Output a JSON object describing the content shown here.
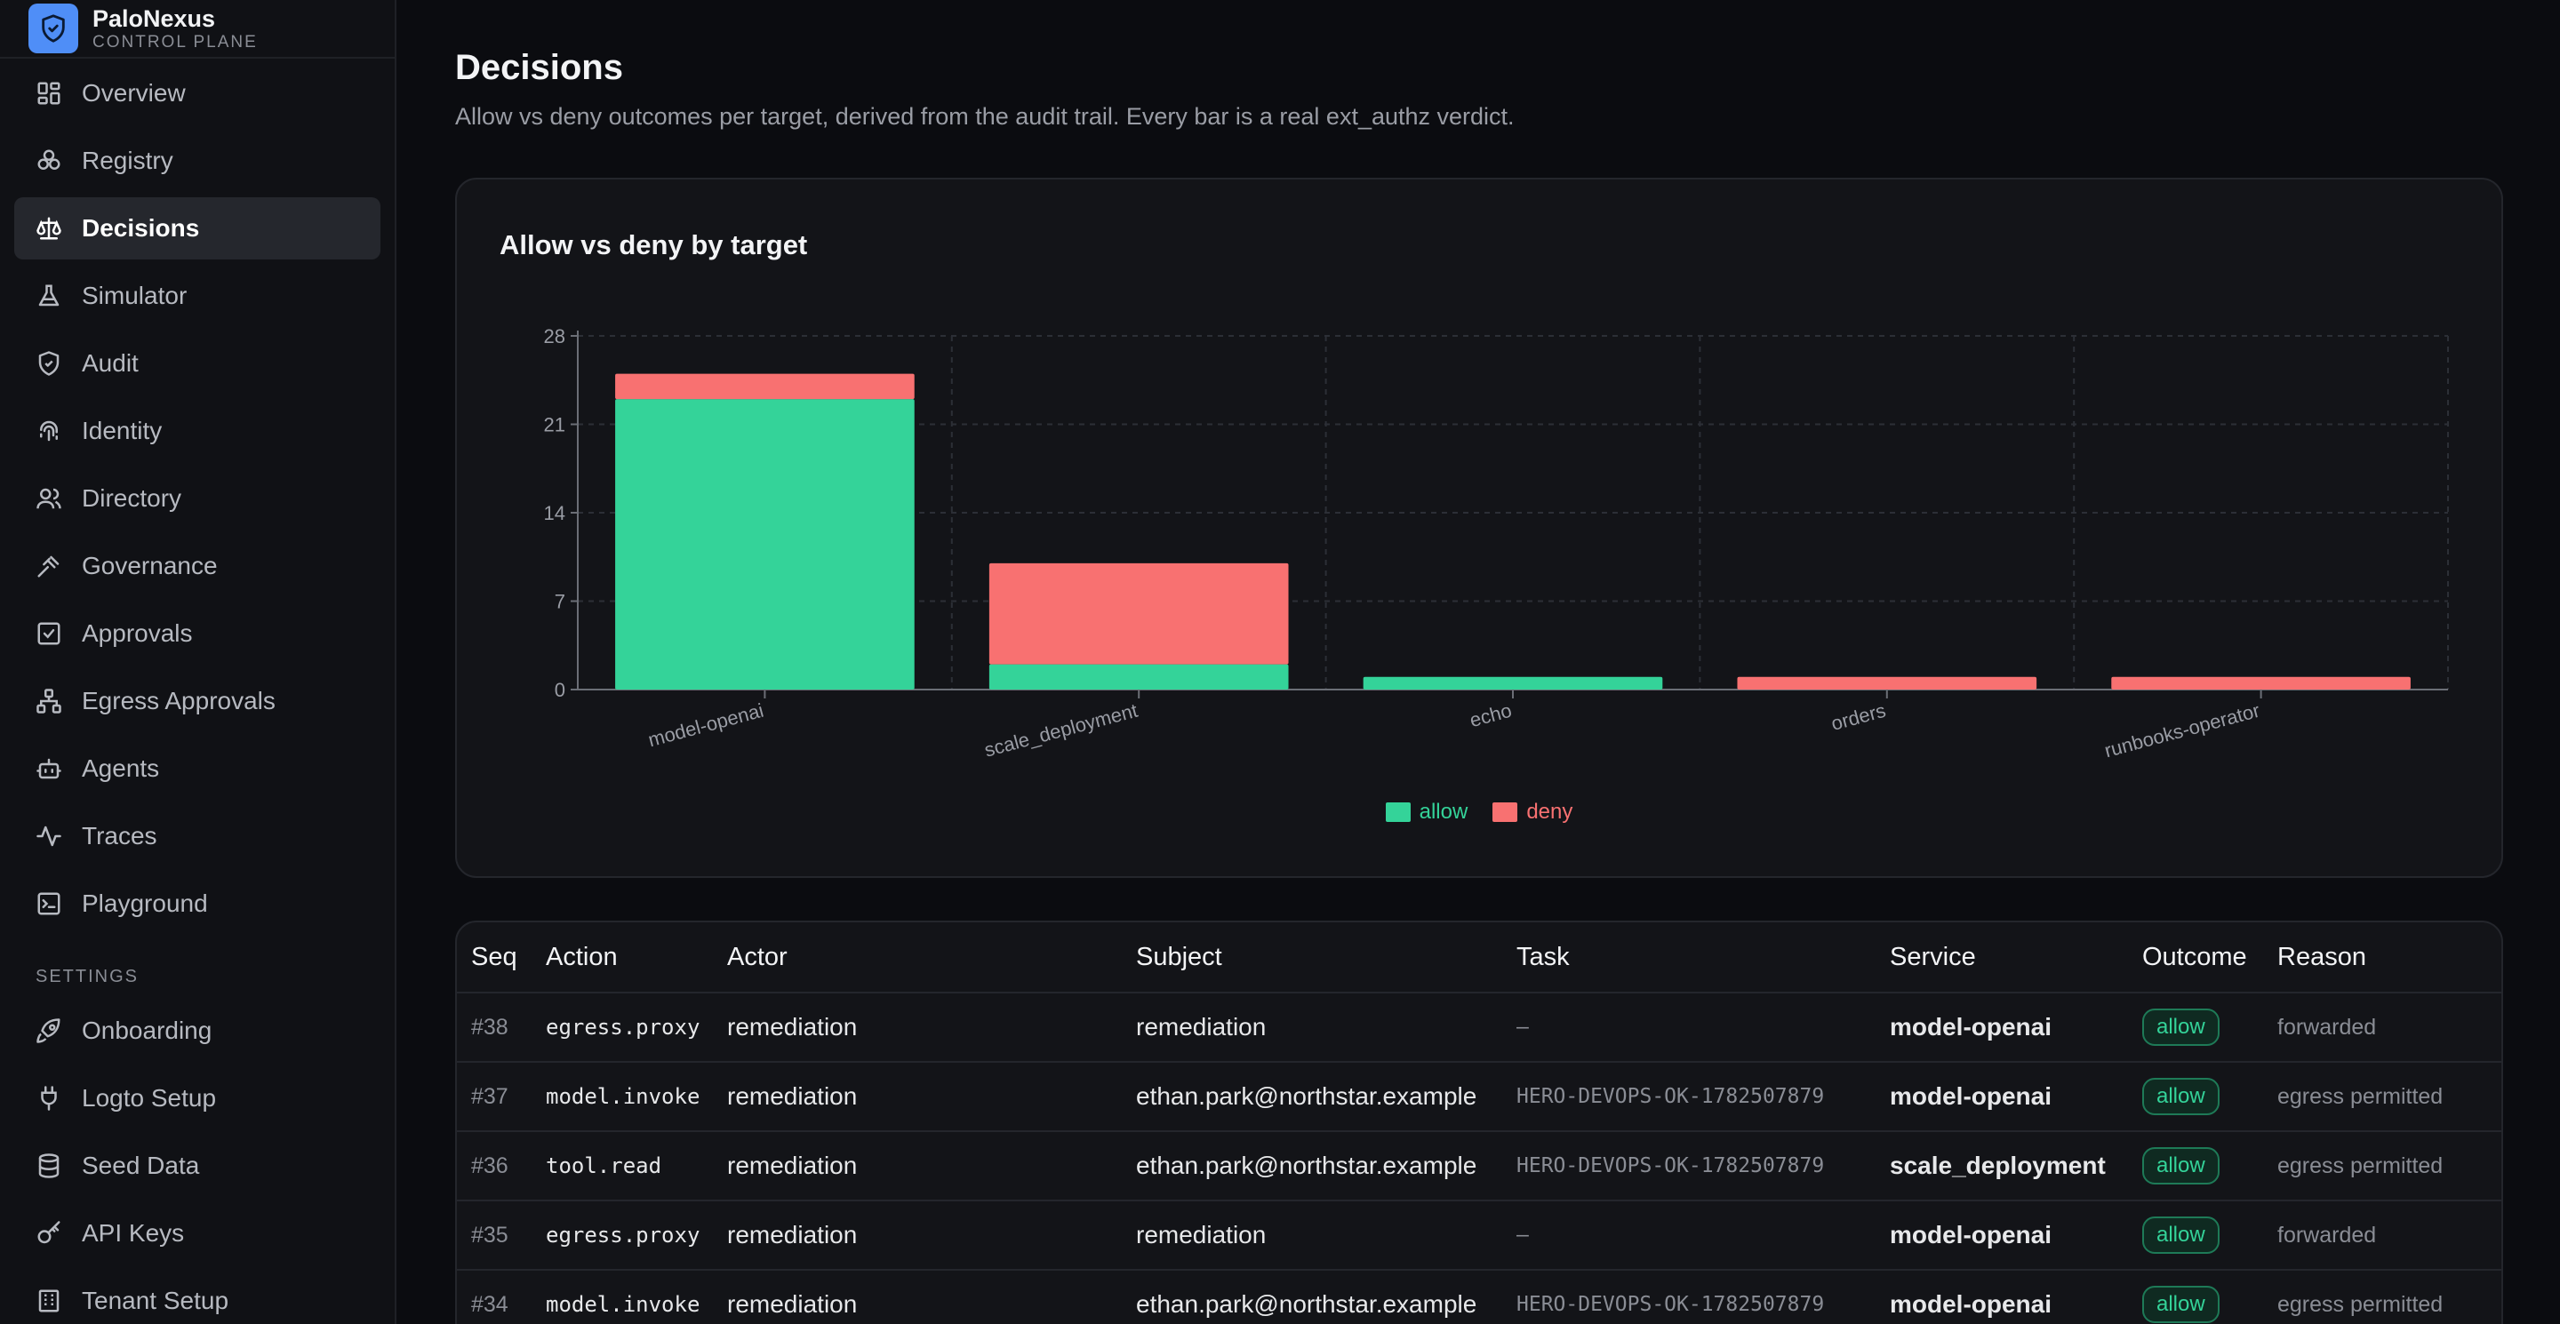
{
  "brand": {
    "name": "PaloNexus",
    "subtitle": "CONTROL PLANE"
  },
  "nav": {
    "items": [
      {
        "label": "Overview",
        "icon": "grid-icon",
        "active": false
      },
      {
        "label": "Registry",
        "icon": "network-icon",
        "active": false
      },
      {
        "label": "Decisions",
        "icon": "scale-icon",
        "active": true
      },
      {
        "label": "Simulator",
        "icon": "flask-icon",
        "active": false
      },
      {
        "label": "Audit",
        "icon": "shield-check-icon",
        "active": false
      },
      {
        "label": "Identity",
        "icon": "fingerprint-icon",
        "active": false
      },
      {
        "label": "Directory",
        "icon": "users-icon",
        "active": false
      },
      {
        "label": "Governance",
        "icon": "gavel-icon",
        "active": false
      },
      {
        "label": "Approvals",
        "icon": "checkbox-icon",
        "active": false
      },
      {
        "label": "Egress Approvals",
        "icon": "hierarchy-icon",
        "active": false
      },
      {
        "label": "Agents",
        "icon": "bot-icon",
        "active": false
      },
      {
        "label": "Traces",
        "icon": "activity-icon",
        "active": false
      },
      {
        "label": "Playground",
        "icon": "terminal-icon",
        "active": false
      }
    ],
    "settings_label": "SETTINGS",
    "settings": [
      {
        "label": "Onboarding",
        "icon": "rocket-icon"
      },
      {
        "label": "Logto Setup",
        "icon": "plug-icon"
      },
      {
        "label": "Seed Data",
        "icon": "database-icon"
      },
      {
        "label": "API Keys",
        "icon": "key-icon"
      },
      {
        "label": "Tenant Setup",
        "icon": "building-icon"
      }
    ]
  },
  "page": {
    "title": "Decisions",
    "subtitle": "Allow vs deny outcomes per target, derived from the audit trail. Every bar is a real ext_authz verdict."
  },
  "chart_data": {
    "type": "bar",
    "stacked": true,
    "title": "Allow vs deny by target",
    "categories": [
      "model-openai",
      "scale_deployment",
      "echo",
      "orders",
      "runbooks-operator"
    ],
    "series": [
      {
        "name": "allow",
        "values": [
          23,
          2,
          1,
          0,
          0
        ],
        "color": "#34d399"
      },
      {
        "name": "deny",
        "values": [
          2,
          8,
          0,
          1,
          1
        ],
        "color": "#f87171"
      }
    ],
    "yticks": [
      0,
      7,
      14,
      21,
      28
    ],
    "ylim": [
      0,
      28
    ],
    "grid": true,
    "legend_position": "bottom-center"
  },
  "table": {
    "headers": [
      "Seq",
      "Action",
      "Actor",
      "Subject",
      "Task",
      "Service",
      "Outcome",
      "Reason"
    ],
    "rows": [
      {
        "seq": "#38",
        "action": "egress.proxy",
        "actor": "remediation",
        "subject": "remediation",
        "task": "–",
        "service": "model-openai",
        "outcome": "allow",
        "reason": "forwarded"
      },
      {
        "seq": "#37",
        "action": "model.invoke",
        "actor": "remediation",
        "subject": "ethan.park@northstar.example",
        "task": "HERO-DEVOPS-OK-1782507879",
        "service": "model-openai",
        "outcome": "allow",
        "reason": "egress permitted"
      },
      {
        "seq": "#36",
        "action": "tool.read",
        "actor": "remediation",
        "subject": "ethan.park@northstar.example",
        "task": "HERO-DEVOPS-OK-1782507879",
        "service": "scale_deployment",
        "outcome": "allow",
        "reason": "egress permitted"
      },
      {
        "seq": "#35",
        "action": "egress.proxy",
        "actor": "remediation",
        "subject": "remediation",
        "task": "–",
        "service": "model-openai",
        "outcome": "allow",
        "reason": "forwarded"
      },
      {
        "seq": "#34",
        "action": "model.invoke",
        "actor": "remediation",
        "subject": "ethan.park@northstar.example",
        "task": "HERO-DEVOPS-OK-1782507879",
        "service": "model-openai",
        "outcome": "allow",
        "reason": "egress permitted"
      }
    ]
  },
  "colors": {
    "accent": "#4f8ef7",
    "allow": "#34d399",
    "deny": "#f87171"
  }
}
